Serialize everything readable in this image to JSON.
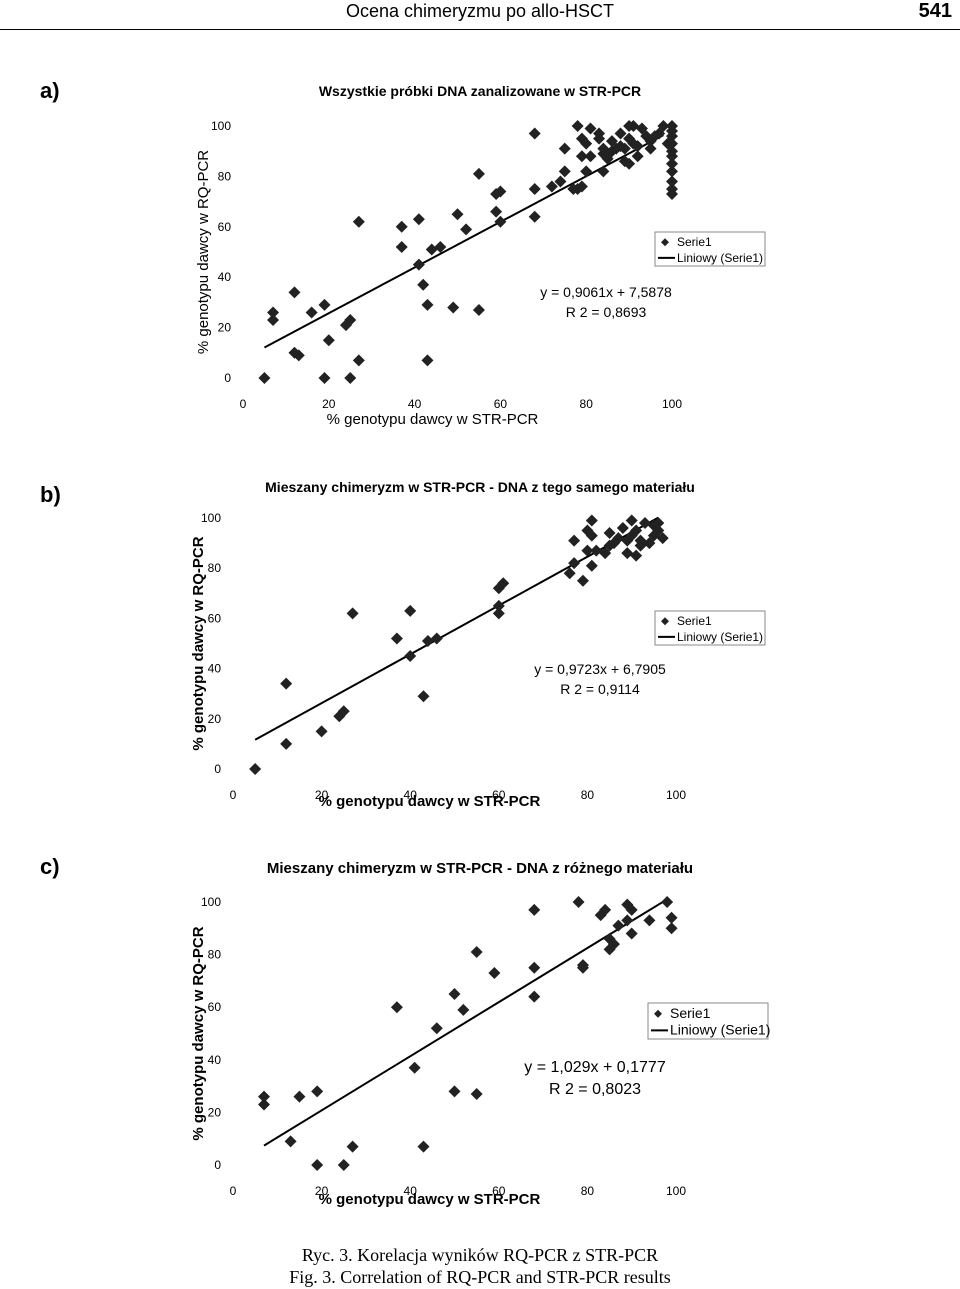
{
  "header": {
    "running_title": "Ocena chimeryzmu po allo-HSCT",
    "page_number": "541"
  },
  "legend": {
    "series_label": "Serie1",
    "trend_label": "Liniowy (Serie1)"
  },
  "chart_data": [
    {
      "panel_label": "a)",
      "type": "scatter",
      "title": "Wszystkie próbki DNA zanalizowane w STR-PCR",
      "xlabel": "% genotypu dawcy w STR-PCR",
      "ylabel": "% genotypu dawcy w RQ-PCR",
      "xlim": [
        0,
        100
      ],
      "ylim": [
        0,
        100
      ],
      "xticks": [
        "0",
        "20",
        "40",
        "60",
        "80",
        "100"
      ],
      "yticks": [
        "0",
        "20",
        "40",
        "60",
        "80",
        "100"
      ],
      "equation": "y = 0,9061x + 7,5878",
      "r2": "R 2 = 0,8693",
      "trend": {
        "slope": 0.9061,
        "intercept": 7.5878,
        "x_start": 5,
        "x_end": 98
      },
      "series": [
        {
          "name": "Serie1",
          "points": [
            [
              5,
              0
            ],
            [
              7,
              26
            ],
            [
              7,
              23
            ],
            [
              12,
              34
            ],
            [
              12,
              10
            ],
            [
              13,
              9
            ],
            [
              16,
              26
            ],
            [
              19,
              29
            ],
            [
              19,
              0
            ],
            [
              20,
              15
            ],
            [
              24,
              21
            ],
            [
              25,
              23
            ],
            [
              25,
              0
            ],
            [
              27,
              7
            ],
            [
              27,
              62
            ],
            [
              37,
              60
            ],
            [
              37,
              52
            ],
            [
              41,
              63
            ],
            [
              41,
              45
            ],
            [
              42,
              37
            ],
            [
              43,
              29
            ],
            [
              43,
              7
            ],
            [
              44,
              51
            ],
            [
              46,
              52
            ],
            [
              49,
              28
            ],
            [
              50,
              65
            ],
            [
              52,
              59
            ],
            [
              55,
              81
            ],
            [
              55,
              27
            ],
            [
              59,
              73
            ],
            [
              59,
              66
            ],
            [
              60,
              62
            ],
            [
              60,
              74
            ],
            [
              68,
              75
            ],
            [
              68,
              64
            ],
            [
              68,
              97
            ],
            [
              72,
              76
            ],
            [
              74,
              78
            ],
            [
              75,
              91
            ],
            [
              75,
              82
            ],
            [
              77,
              75
            ],
            [
              78,
              75
            ],
            [
              78,
              100
            ],
            [
              79,
              95
            ],
            [
              79,
              88
            ],
            [
              79,
              76
            ],
            [
              80,
              93
            ],
            [
              80,
              82
            ],
            [
              81,
              99
            ],
            [
              81,
              88
            ],
            [
              83,
              97
            ],
            [
              83,
              95
            ],
            [
              84,
              91
            ],
            [
              84,
              89
            ],
            [
              84,
              82
            ],
            [
              85,
              87
            ],
            [
              86,
              90
            ],
            [
              86,
              94
            ],
            [
              87,
              91
            ],
            [
              88,
              97
            ],
            [
              88,
              92
            ],
            [
              89,
              86
            ],
            [
              89,
              91
            ],
            [
              90,
              100
            ],
            [
              90,
              95
            ],
            [
              90,
              85
            ],
            [
              91,
              100
            ],
            [
              91,
              93
            ],
            [
              92,
              92
            ],
            [
              92,
              88
            ],
            [
              93,
              99
            ],
            [
              94,
              96
            ],
            [
              95,
              91
            ],
            [
              95,
              94
            ],
            [
              96,
              96
            ],
            [
              97,
              97
            ],
            [
              98,
              100
            ],
            [
              99,
              93
            ],
            [
              100,
              100
            ],
            [
              100,
              98
            ],
            [
              100,
              96
            ],
            [
              100,
              93
            ],
            [
              100,
              90
            ],
            [
              100,
              88
            ],
            [
              100,
              85
            ],
            [
              100,
              82
            ],
            [
              100,
              78
            ],
            [
              100,
              75
            ],
            [
              100,
              73
            ]
          ]
        }
      ]
    },
    {
      "panel_label": "b)",
      "type": "scatter",
      "title": "Mieszany chimeryzm w STR-PCR - DNA z tego samego materiału",
      "xlabel": "% genotypu dawcy w STR-PCR",
      "ylabel": "% genotypu dawcy w RQ-PCR",
      "xlim": [
        0,
        100
      ],
      "ylim": [
        0,
        100
      ],
      "xticks": [
        "0",
        "20",
        "40",
        "60",
        "80",
        "100"
      ],
      "yticks": [
        "0",
        "20",
        "40",
        "60",
        "80",
        "100"
      ],
      "equation": "y = 0,9723x + 6,7905",
      "r2": "R 2 = 0,9114",
      "trend": {
        "slope": 0.9723,
        "intercept": 6.7905,
        "x_start": 5,
        "x_end": 96
      },
      "series": [
        {
          "name": "Serie1",
          "points": [
            [
              5,
              0
            ],
            [
              12,
              34
            ],
            [
              12,
              10
            ],
            [
              20,
              15
            ],
            [
              24,
              21
            ],
            [
              25,
              23
            ],
            [
              27,
              62
            ],
            [
              37,
              52
            ],
            [
              40,
              63
            ],
            [
              40,
              45
            ],
            [
              43,
              29
            ],
            [
              44,
              51
            ],
            [
              46,
              52
            ],
            [
              60,
              72
            ],
            [
              60,
              65
            ],
            [
              60,
              62
            ],
            [
              61,
              74
            ],
            [
              76,
              78
            ],
            [
              77,
              82
            ],
            [
              77,
              91
            ],
            [
              79,
              75
            ],
            [
              80,
              87
            ],
            [
              80,
              95
            ],
            [
              81,
              99
            ],
            [
              81,
              93
            ],
            [
              81,
              81
            ],
            [
              82,
              87
            ],
            [
              84,
              86
            ],
            [
              85,
              94
            ],
            [
              85,
              89
            ],
            [
              86,
              90
            ],
            [
              87,
              92
            ],
            [
              88,
              96
            ],
            [
              89,
              86
            ],
            [
              89,
              91
            ],
            [
              90,
              93
            ],
            [
              90,
              99
            ],
            [
              91,
              85
            ],
            [
              91,
              95
            ],
            [
              92,
              89
            ],
            [
              92,
              91
            ],
            [
              93,
              98
            ],
            [
              94,
              90
            ],
            [
              95,
              97
            ],
            [
              95,
              93
            ],
            [
              96,
              95
            ],
            [
              96,
              98
            ],
            [
              97,
              92
            ]
          ]
        }
      ]
    },
    {
      "panel_label": "c)",
      "type": "scatter",
      "title": "Mieszany chimeryzm w STR-PCR - DNA z różnego materiału",
      "xlabel": "% genotypu dawcy w STR-PCR",
      "ylabel": "% genotypu dawcy w RQ-PCR",
      "xlim": [
        0,
        100
      ],
      "ylim": [
        0,
        100
      ],
      "xticks": [
        "0",
        "20",
        "40",
        "60",
        "80",
        "100"
      ],
      "yticks": [
        "0",
        "20",
        "40",
        "60",
        "80",
        "100"
      ],
      "equation": "y = 1,029x + 0,1777",
      "r2": "R 2 = 0,8023",
      "trend": {
        "slope": 1.029,
        "intercept": 0.1777,
        "x_start": 7,
        "x_end": 98
      },
      "series": [
        {
          "name": "Serie1",
          "points": [
            [
              7,
              26
            ],
            [
              7,
              23
            ],
            [
              13,
              9
            ],
            [
              15,
              26
            ],
            [
              19,
              28
            ],
            [
              19,
              0
            ],
            [
              25,
              0
            ],
            [
              27,
              7
            ],
            [
              37,
              60
            ],
            [
              41,
              37
            ],
            [
              43,
              7
            ],
            [
              46,
              52
            ],
            [
              50,
              28
            ],
            [
              50,
              65
            ],
            [
              52,
              59
            ],
            [
              55,
              81
            ],
            [
              55,
              27
            ],
            [
              59,
              73
            ],
            [
              68,
              75
            ],
            [
              68,
              64
            ],
            [
              68,
              97
            ],
            [
              78,
              100
            ],
            [
              79,
              76
            ],
            [
              79,
              75
            ],
            [
              83,
              95
            ],
            [
              84,
              97
            ],
            [
              85,
              86
            ],
            [
              85,
              82
            ],
            [
              86,
              84
            ],
            [
              87,
              91
            ],
            [
              89,
              99
            ],
            [
              89,
              93
            ],
            [
              90,
              97
            ],
            [
              90,
              88
            ],
            [
              94,
              93
            ],
            [
              98,
              100
            ],
            [
              99,
              94
            ],
            [
              99,
              90
            ]
          ]
        }
      ]
    }
  ],
  "caption": {
    "line_pl": "Ryc. 3. Korelacja wyników RQ-PCR z STR-PCR",
    "line_en": "Fig. 3. Correlation of  RQ-PCR and STR-PCR results"
  }
}
